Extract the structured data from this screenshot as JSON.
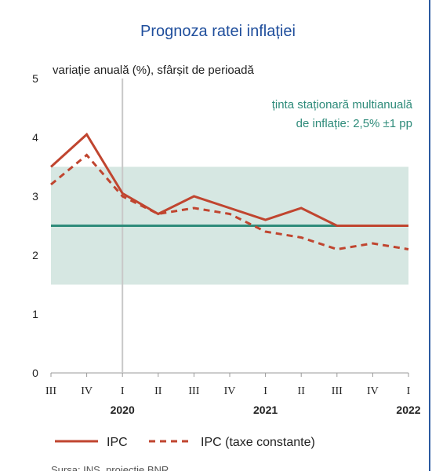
{
  "chart_data": {
    "type": "line",
    "title": "Prognoza ratei inflației",
    "subtitle": "variație anuală (%), sfârșit de perioadă",
    "annotation": [
      "ținta staționară multianuală",
      "de inflație: 2,5% ±1 pp"
    ],
    "source": "Sursa: INS, proiecție BNR",
    "categories": [
      "III",
      "IV",
      "I",
      "II",
      "III",
      "IV",
      "I",
      "II",
      "III",
      "IV",
      "I"
    ],
    "year_labels": [
      null,
      null,
      "2020",
      null,
      null,
      null,
      "2021",
      null,
      null,
      null,
      "2022"
    ],
    "series": [
      {
        "name": "IPC",
        "color": "#c0452f",
        "line_style": "solid",
        "values": [
          3.5,
          4.05,
          3.05,
          2.7,
          3.0,
          2.8,
          2.6,
          2.8,
          2.5,
          2.5,
          2.5
        ]
      },
      {
        "name": "IPC (taxe constante)",
        "color": "#c0452f",
        "line_style": "dashed",
        "values": [
          3.2,
          3.7,
          3.0,
          2.7,
          2.8,
          2.7,
          2.4,
          2.3,
          2.1,
          2.2,
          2.1
        ]
      }
    ],
    "target": 2.5,
    "target_color": "#2e8b7a",
    "band": [
      1.5,
      3.5
    ],
    "band_color": "#d6e7e2",
    "ylim": [
      0,
      5
    ],
    "yticks": [
      0,
      1,
      2,
      3,
      4,
      5
    ]
  }
}
